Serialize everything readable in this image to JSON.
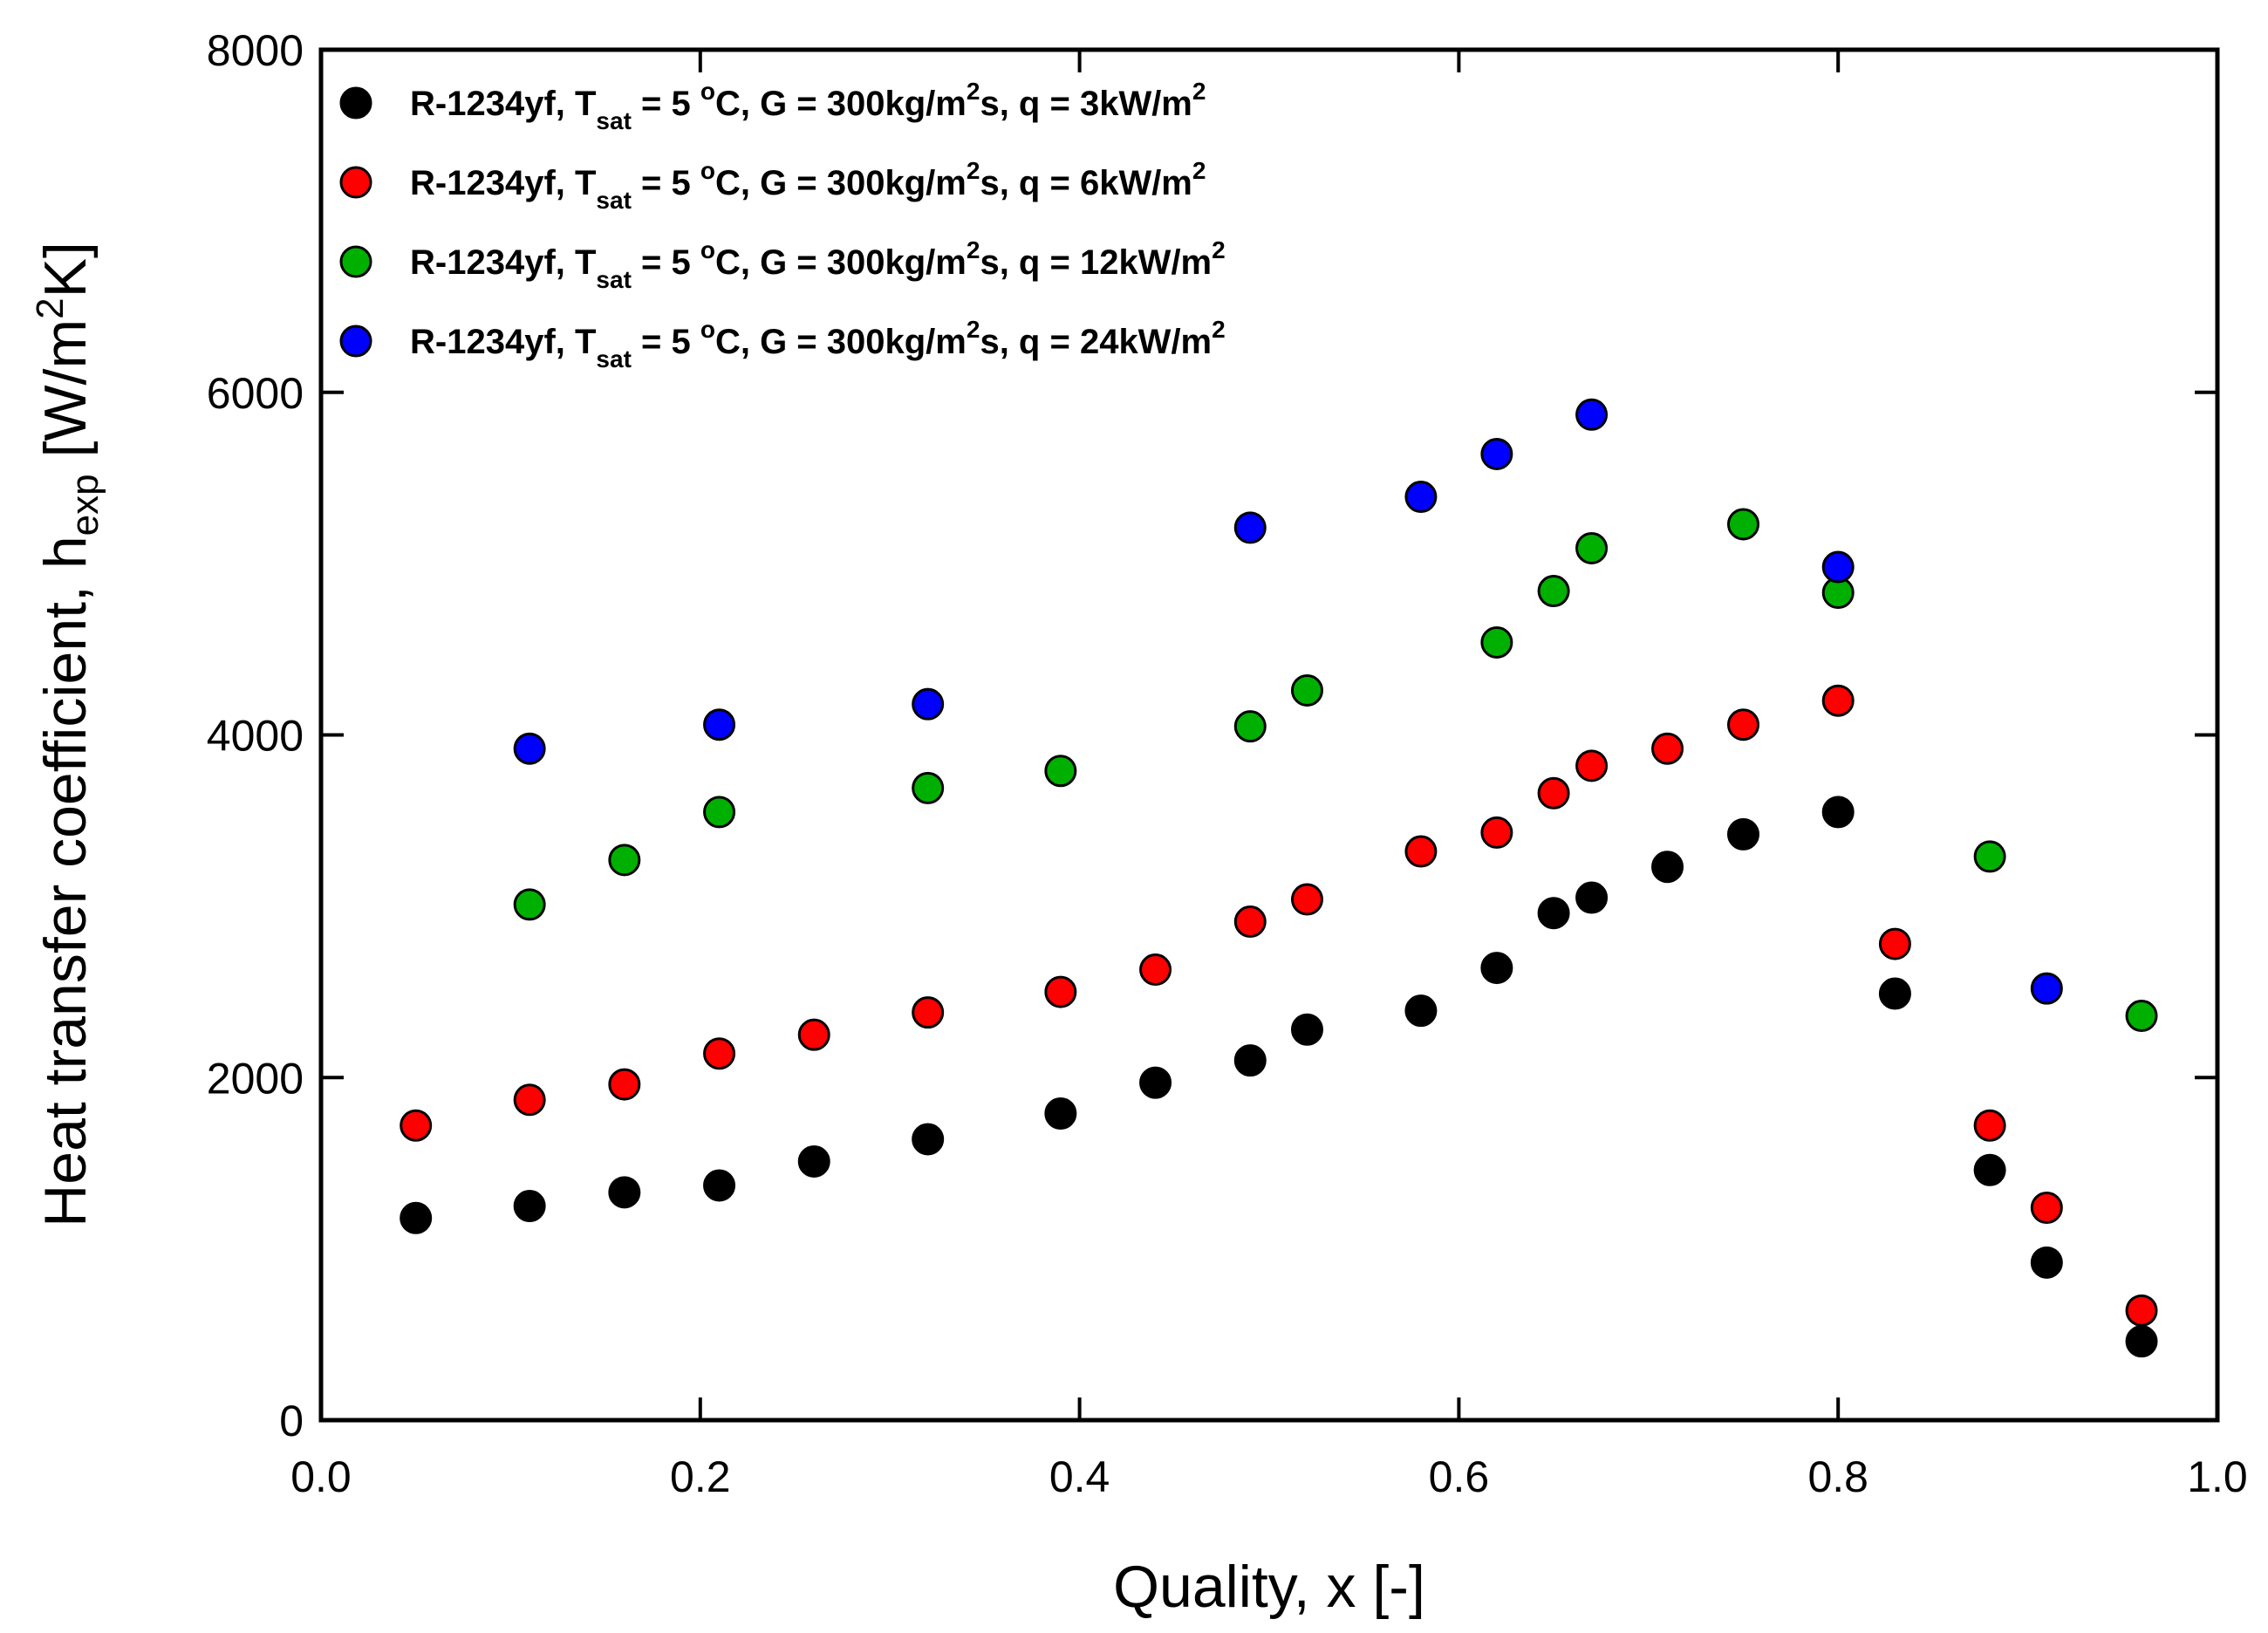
{
  "chart_data": {
    "type": "scatter",
    "title": "",
    "xlabel": "Quality, x [-]",
    "ylabel": {
      "main": "Heat transfer coefficient, h",
      "sub": "exp",
      "unit_open": " [W/m",
      "unit_sup": "2",
      "unit_close": "K]"
    },
    "xlim": [
      0.0,
      1.0
    ],
    "ylim": [
      0,
      8000
    ],
    "x_ticks": [
      "0.0",
      "0.2",
      "0.4",
      "0.6",
      "0.8",
      "1.0"
    ],
    "y_ticks": [
      "0",
      "2000",
      "4000",
      "6000",
      "8000"
    ],
    "grid": false,
    "legend_position": "top-left",
    "series": [
      {
        "name": "R-1234yf, Tsat = 5 °C, G = 300kg/m2s, q = 3kW/m2",
        "label": {
          "p1": "R-1234yf, T",
          "sub": "sat",
          "p2": " = 5 ",
          "sup1": "o",
          "p3": "C, G = 300kg/m",
          "sup2": "2",
          "p4": "s, q = 3kW/m",
          "sup3": "2"
        },
        "color": "#000000",
        "x": [
          0.05,
          0.11,
          0.16,
          0.21,
          0.26,
          0.32,
          0.39,
          0.44,
          0.49,
          0.52,
          0.58,
          0.62,
          0.65,
          0.67,
          0.71,
          0.75,
          0.8,
          0.83,
          0.88,
          0.91,
          0.96
        ],
        "y": [
          1180,
          1250,
          1330,
          1370,
          1510,
          1640,
          1790,
          1970,
          2100,
          2280,
          2390,
          2640,
          2960,
          3050,
          3230,
          3420,
          3550,
          2490,
          1460,
          920,
          460
        ]
      },
      {
        "name": "R-1234yf, Tsat = 5 °C, G = 300kg/m2s, q = 6kW/m2",
        "label": {
          "p1": "R-1234yf, T",
          "sub": "sat",
          "p2": " = 5 ",
          "sup1": "o",
          "p3": "C, G = 300kg/m",
          "sup2": "2",
          "p4": "s, q = 6kW/m",
          "sup3": "2"
        },
        "color": "#ff0000",
        "x": [
          0.05,
          0.11,
          0.16,
          0.21,
          0.26,
          0.32,
          0.39,
          0.44,
          0.49,
          0.52,
          0.58,
          0.62,
          0.65,
          0.67,
          0.71,
          0.75,
          0.8,
          0.83,
          0.88,
          0.91,
          0.96
        ],
        "y": [
          1720,
          1870,
          1960,
          2140,
          2250,
          2380,
          2500,
          2630,
          2910,
          3040,
          3320,
          3430,
          3660,
          3820,
          3920,
          4060,
          4200,
          2780,
          1720,
          1240,
          640
        ]
      },
      {
        "name": "R-1234yf, Tsat = 5 °C, G = 300kg/m2s, q = 12kW/m2",
        "label": {
          "p1": "R-1234yf, T",
          "sub": "sat",
          "p2": " = 5 ",
          "sup1": "o",
          "p3": "C, G = 300kg/m",
          "sup2": "2",
          "p4": "s, q = 12kW/m",
          "sup3": "2"
        },
        "color": "#00b000",
        "x": [
          0.11,
          0.16,
          0.21,
          0.32,
          0.39,
          0.49,
          0.52,
          0.62,
          0.65,
          0.67,
          0.75,
          0.8,
          0.88,
          0.96
        ],
        "y": [
          3010,
          3270,
          3550,
          3690,
          3790,
          4050,
          4260,
          4540,
          4840,
          5090,
          5230,
          4830,
          3290,
          2360
        ]
      },
      {
        "name": "R-1234yf, Tsat = 5 °C, G = 300kg/m2s, q = 24kW/m2",
        "label": {
          "p1": "R-1234yf, T",
          "sub": "sat",
          "p2": " = 5 ",
          "sup1": "o",
          "p3": "C, G = 300kg/m",
          "sup2": "2",
          "p4": "s, q = 24kW/m",
          "sup3": "2"
        },
        "color": "#0000ff",
        "x": [
          0.11,
          0.21,
          0.32,
          0.49,
          0.58,
          0.62,
          0.67,
          0.8,
          0.91
        ],
        "y": [
          3920,
          4060,
          4180,
          5210,
          5390,
          5640,
          5870,
          4980,
          2520
        ]
      }
    ]
  }
}
